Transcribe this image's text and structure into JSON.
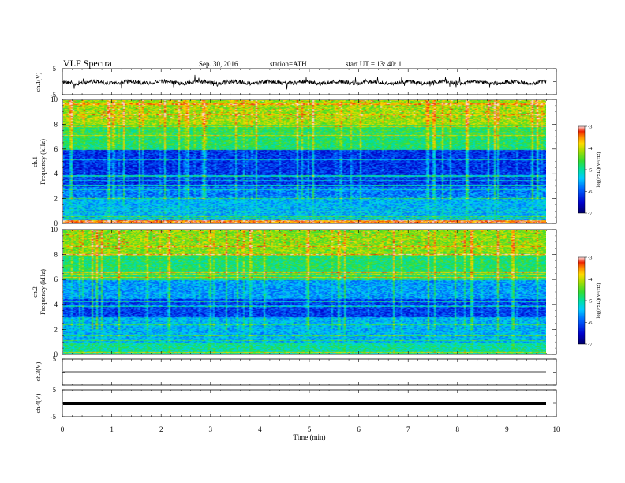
{
  "header": {
    "title": "VLF  Spectra",
    "date": "Sep. 30, 2016",
    "station": "station=ATH",
    "start": "start  UT  =    13: 40: 1"
  },
  "chart_data": {
    "type": "heatmap",
    "xlabel": "Time  (min)",
    "xlim": [
      0,
      10
    ],
    "xticks": [
      "0",
      "1",
      "2",
      "3",
      "4",
      "5",
      "6",
      "7",
      "8",
      "9",
      "10"
    ],
    "data_end_min": 9.8,
    "panels": [
      {
        "id": "ch1-wave",
        "type": "line",
        "ylabel": "ch.1(V)",
        "yticks": [
          "5",
          "-5"
        ],
        "ylim": [
          -5,
          5
        ]
      },
      {
        "id": "ch1-spec",
        "type": "heatmap",
        "ylabel_top": "ch.1",
        "ylabel": "Frequency  (kHz)",
        "yticks": [
          "0",
          "2",
          "4",
          "6",
          "8",
          "10"
        ],
        "ylim": [
          0,
          10
        ],
        "colorbar": {
          "label": "log(PSD)(V²/Hz)",
          "ticks": [
            "-3",
            "-4",
            "-5",
            "-6",
            "-7"
          ],
          "range": [
            -7,
            -3
          ]
        }
      },
      {
        "id": "ch2-spec",
        "type": "heatmap",
        "ylabel_top": "ch.2",
        "ylabel": "Frequency  (kHz)",
        "yticks": [
          "0",
          "2",
          "4",
          "6",
          "8",
          "10"
        ],
        "ylim": [
          0,
          10
        ],
        "colorbar": {
          "label": "log(PSD)(V²/Hz)",
          "ticks": [
            "-3",
            "-4",
            "-5",
            "-6",
            "-7"
          ],
          "range": [
            -7,
            -3
          ]
        }
      },
      {
        "id": "ch3-wave",
        "type": "line",
        "ylabel": "ch.3(V)",
        "yticks": [
          "5"
        ],
        "ylim": [
          -5,
          5
        ]
      },
      {
        "id": "ch4-wave",
        "type": "line",
        "ylabel": "ch.4(V)",
        "yticks": [
          "5",
          "-5"
        ],
        "ylim": [
          -5,
          5
        ]
      }
    ]
  }
}
